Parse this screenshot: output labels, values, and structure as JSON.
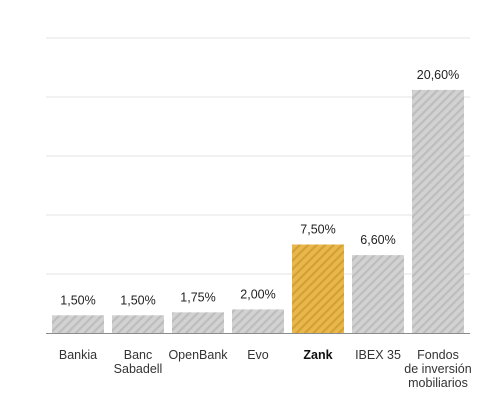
{
  "chart_data": {
    "type": "bar",
    "categories": [
      [
        "Bankia"
      ],
      [
        "Banc",
        "Sabadell"
      ],
      [
        "OpenBank"
      ],
      [
        "Evo"
      ],
      [
        "Zank"
      ],
      [
        "IBEX 35"
      ],
      [
        "Fondos",
        "de inversión",
        "mobiliarios"
      ]
    ],
    "values": [
      1.5,
      1.5,
      1.75,
      2.0,
      7.5,
      6.6,
      20.6
    ],
    "value_labels": [
      "1,50%",
      "1,50%",
      "1,75%",
      "2,00%",
      "7,50%",
      "6,60%",
      "20,60%"
    ],
    "highlight_index": 4,
    "ylim": [
      0,
      25
    ],
    "grid": true,
    "title": "",
    "xlabel": "",
    "ylabel": ""
  },
  "colors": {
    "bar": "#d2d2d2",
    "bar_stripe": "#bdbdbd",
    "highlight": "#e8b84d",
    "highlight_stripe": "#d4a033",
    "grid": "#e3e3e3",
    "axis": "#8c8c8c"
  }
}
